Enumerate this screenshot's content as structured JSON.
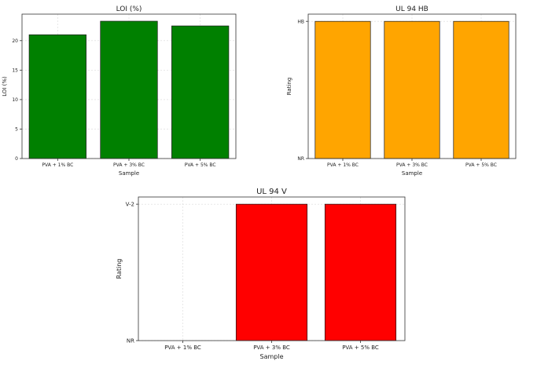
{
  "chart_data": [
    {
      "type": "bar",
      "title": "LOI (%)",
      "xlabel": "Sample",
      "ylabel": "LOI (%)",
      "categories": [
        "PVA + 1% BC",
        "PVA + 3% BC",
        "PVA + 5% BC"
      ],
      "values": [
        21.0,
        23.3,
        22.5
      ],
      "ylim": [
        0,
        24.5
      ],
      "yticks": [
        0,
        5,
        10,
        15,
        20
      ],
      "ytick_labels": [
        "0",
        "5",
        "10",
        "15",
        "20"
      ],
      "color": "#008000",
      "grid": true
    },
    {
      "type": "bar",
      "title": "UL 94 HB",
      "xlabel": "Sample",
      "ylabel": "Rating",
      "categories": [
        "PVA + 1% BC",
        "PVA + 3% BC",
        "PVA + 5% BC"
      ],
      "values": [
        "HB",
        "HB",
        "HB"
      ],
      "y_levels": [
        "NR",
        "HB"
      ],
      "color": "#ffa500",
      "grid": true
    },
    {
      "type": "bar",
      "title": "UL 94 V",
      "xlabel": "Sample",
      "ylabel": "Rating",
      "categories": [
        "PVA + 1% BC",
        "PVA + 3% BC",
        "PVA + 5% BC"
      ],
      "values": [
        "NR",
        "V-2",
        "V-2"
      ],
      "y_levels": [
        "NR",
        "V-2"
      ],
      "color": "#ff0000",
      "grid": true
    }
  ]
}
